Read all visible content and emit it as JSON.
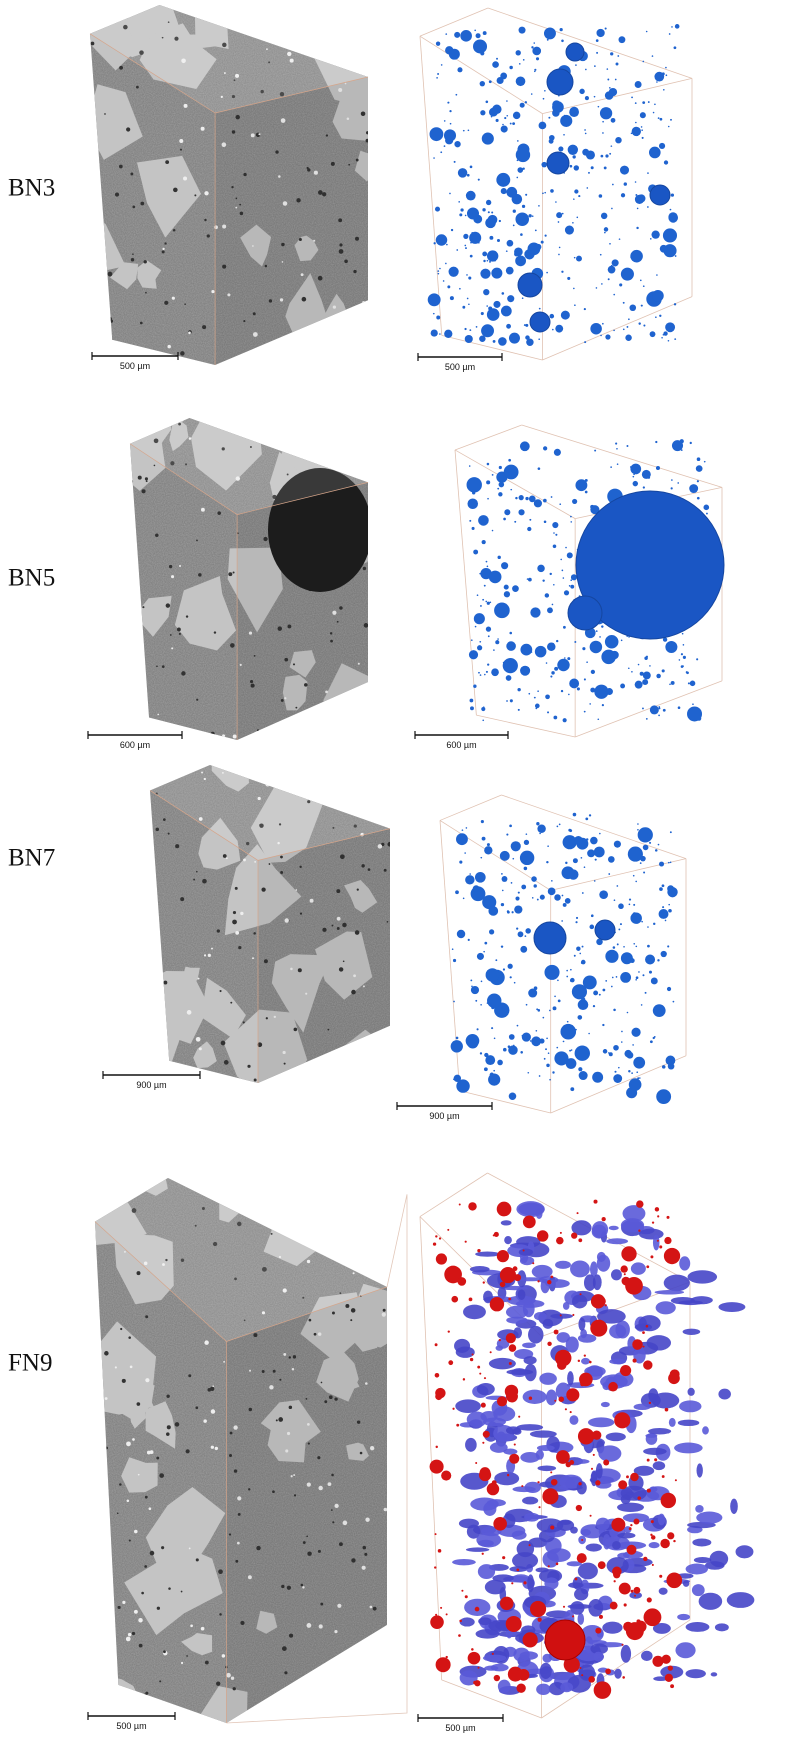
{
  "figure": {
    "rows": [
      {
        "label": "BN3",
        "left_scale": "500 µm",
        "right_scale": "500 µm"
      },
      {
        "label": "BN5",
        "left_scale": "600 µm",
        "right_scale": "600 µm"
      },
      {
        "label": "BN7",
        "left_scale": "900 µm",
        "right_scale": "900 µm"
      },
      {
        "label": "FN9",
        "left_scale": "500 µm",
        "right_scale": "500 µm"
      }
    ]
  }
}
